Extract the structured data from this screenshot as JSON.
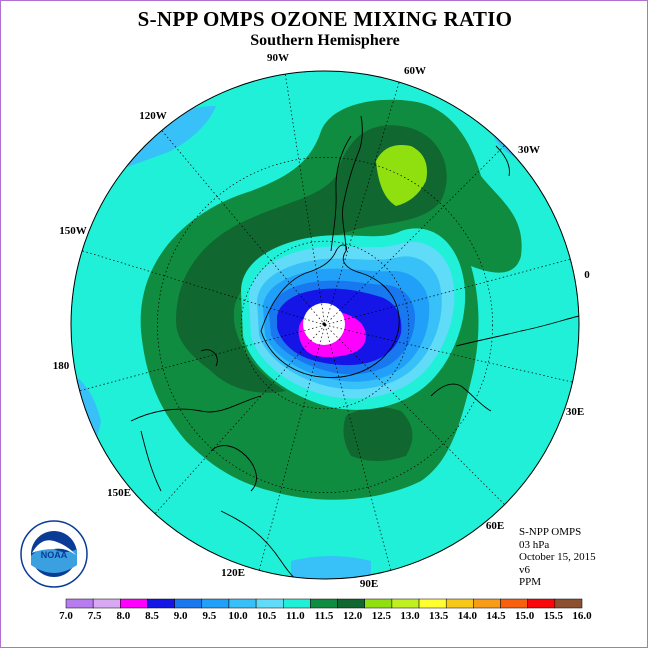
{
  "title": "S-NPP OMPS OZONE MIXING RATIO",
  "subtitle": "Southern Hemisphere",
  "info": {
    "instrument": "S-NPP OMPS",
    "level": "03 hPa",
    "date": "October 15, 2015",
    "version": "v6",
    "units": "PPM"
  },
  "longitude_labels": [
    "90W",
    "60W",
    "30W",
    "0",
    "30E",
    "60E",
    "90E",
    "120E",
    "150E",
    "180",
    "150W",
    "120W"
  ],
  "logo": {
    "text": "NOAA",
    "ring_text": "NATIONAL OCEANIC AND ATMOSPHERIC ADMINISTRATION",
    "ring_text_lower": "U.S. DEPARTMENT OF COMMERCE"
  },
  "colorbar": {
    "labels": [
      "7.0",
      "7.5",
      "8.0",
      "8.5",
      "9.0",
      "9.5",
      "10.0",
      "10.5",
      "11.0",
      "11.5",
      "12.0",
      "12.5",
      "13.0",
      "13.5",
      "14.0",
      "14.5",
      "15.0",
      "15.5",
      "16.0"
    ],
    "colors": [
      "#b77cf0",
      "#d8a8f2",
      "#ff00ff",
      "#1515e8",
      "#1878f0",
      "#20a0f8",
      "#38c0f8",
      "#60dcf8",
      "#20f0d8",
      "#108c40",
      "#106830",
      "#90e010",
      "#c0f020",
      "#ffff30",
      "#f8c818",
      "#f89c18",
      "#f86010",
      "#f80808",
      "#8c5030"
    ]
  }
}
